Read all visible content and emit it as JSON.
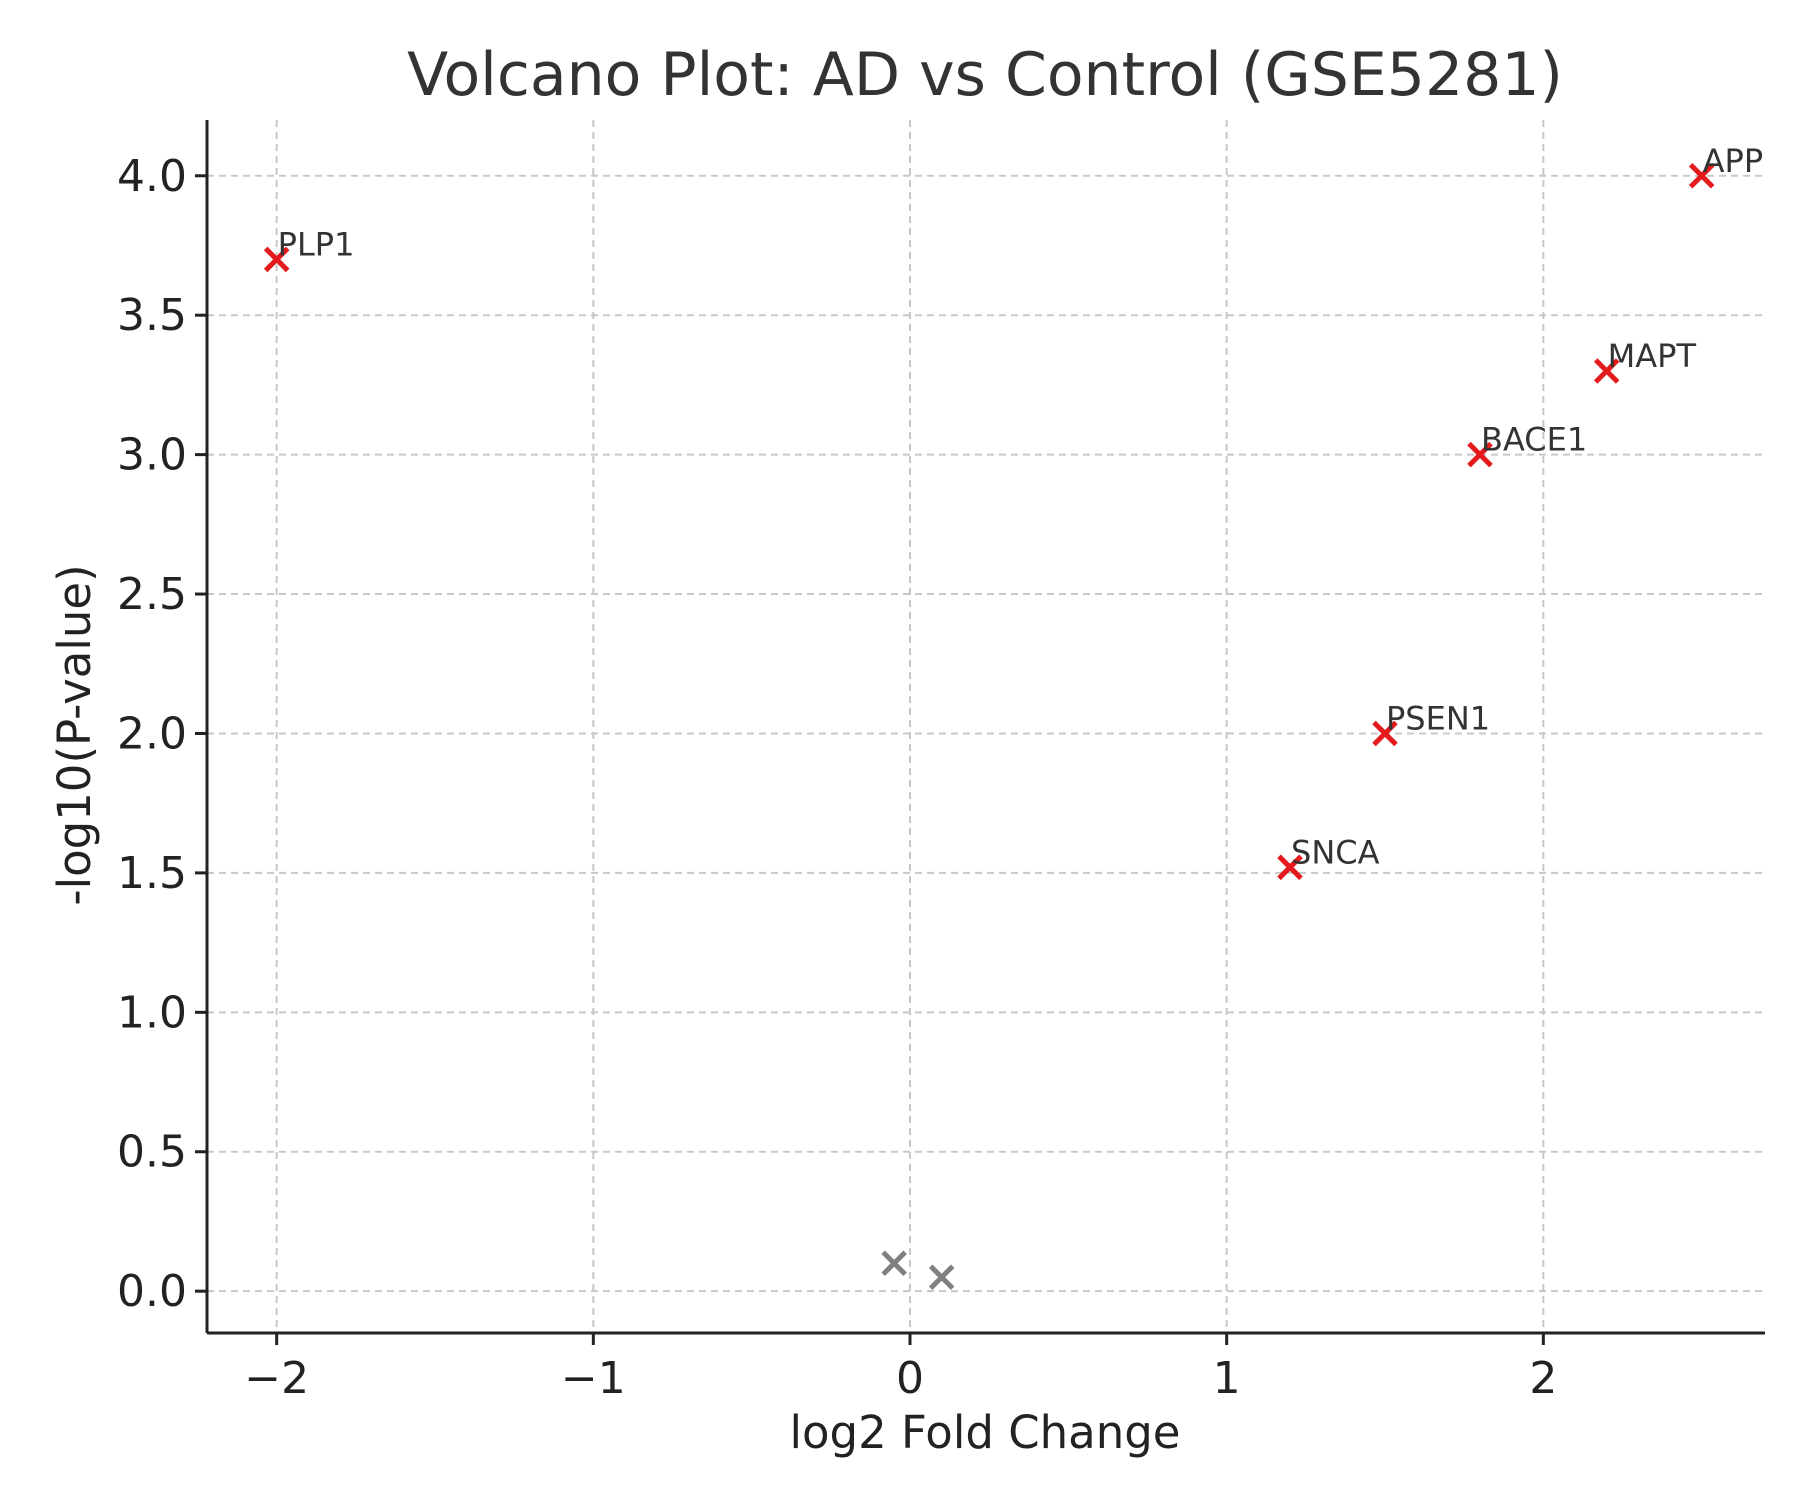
{
  "chart_data": {
    "type": "scatter",
    "title": "Volcano Plot: AD vs Control (GSE5281)",
    "xlabel": "log2 Fold Change",
    "ylabel": "-log10(P-value)",
    "xlim": [
      -2.22,
      2.7
    ],
    "ylim": [
      -0.15,
      4.2
    ],
    "x_ticks": [
      -2,
      -1,
      0,
      1,
      2
    ],
    "x_tick_labels": [
      "−2",
      "−1",
      "0",
      "1",
      "2"
    ],
    "y_ticks": [
      0.0,
      0.5,
      1.0,
      1.5,
      2.0,
      2.5,
      3.0,
      3.5,
      4.0
    ],
    "y_tick_labels": [
      "0.0",
      "0.5",
      "1.0",
      "1.5",
      "2.0",
      "2.5",
      "3.0",
      "3.5",
      "4.0"
    ],
    "grid": true,
    "marker": "x",
    "colors": {
      "significant": "#e41a1c",
      "nonsignificant": "#808080"
    },
    "points": [
      {
        "label": "APP",
        "x": 2.5,
        "y": 4.0,
        "significant": true
      },
      {
        "label": "PLP1",
        "x": -2.0,
        "y": 3.7,
        "significant": true
      },
      {
        "label": "MAPT",
        "x": 2.2,
        "y": 3.3,
        "significant": true
      },
      {
        "label": "BACE1",
        "x": 1.8,
        "y": 3.0,
        "significant": true
      },
      {
        "label": "PSEN1",
        "x": 1.5,
        "y": 2.0,
        "significant": true
      },
      {
        "label": "SNCA",
        "x": 1.2,
        "y": 1.52,
        "significant": true
      },
      {
        "label": "",
        "x": -0.05,
        "y": 0.1,
        "significant": false
      },
      {
        "label": "",
        "x": 0.1,
        "y": 0.05,
        "significant": false
      }
    ]
  }
}
